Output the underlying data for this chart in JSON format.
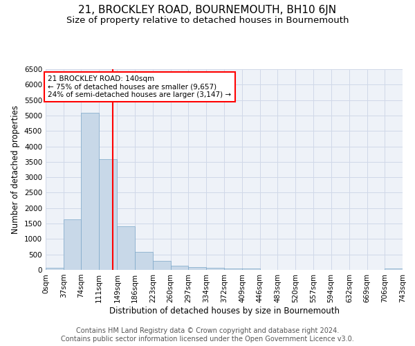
{
  "title": "21, BROCKLEY ROAD, BOURNEMOUTH, BH10 6JN",
  "subtitle": "Size of property relative to detached houses in Bournemouth",
  "xlabel": "Distribution of detached houses by size in Bournemouth",
  "ylabel": "Number of detached properties",
  "footer_line1": "Contains HM Land Registry data © Crown copyright and database right 2024.",
  "footer_line2": "Contains public sector information licensed under the Open Government Licence v3.0.",
  "bin_edges": [
    0,
    37,
    74,
    111,
    149,
    186,
    223,
    260,
    297,
    334,
    372,
    409,
    446,
    483,
    520,
    557,
    594,
    632,
    669,
    706,
    743
  ],
  "bar_values": [
    70,
    1640,
    5080,
    3590,
    1410,
    580,
    290,
    140,
    100,
    75,
    55,
    50,
    0,
    0,
    0,
    0,
    0,
    0,
    0,
    55
  ],
  "bar_color": "#c8d8e8",
  "bar_edge_color": "#7ba7c8",
  "vline_x": 140,
  "vline_color": "red",
  "annotation_line1": "21 BROCKLEY ROAD: 140sqm",
  "annotation_line2": "← 75% of detached houses are smaller (9,657)",
  "annotation_line3": "24% of semi-detached houses are larger (3,147) →",
  "ylim": [
    0,
    6500
  ],
  "yticks": [
    0,
    500,
    1000,
    1500,
    2000,
    2500,
    3000,
    3500,
    4000,
    4500,
    5000,
    5500,
    6000,
    6500
  ],
  "grid_color": "#d0d8e8",
  "bg_color": "#eef2f8",
  "title_fontsize": 11,
  "subtitle_fontsize": 9.5,
  "label_fontsize": 8.5,
  "tick_fontsize": 7.5,
  "footer_fontsize": 7
}
